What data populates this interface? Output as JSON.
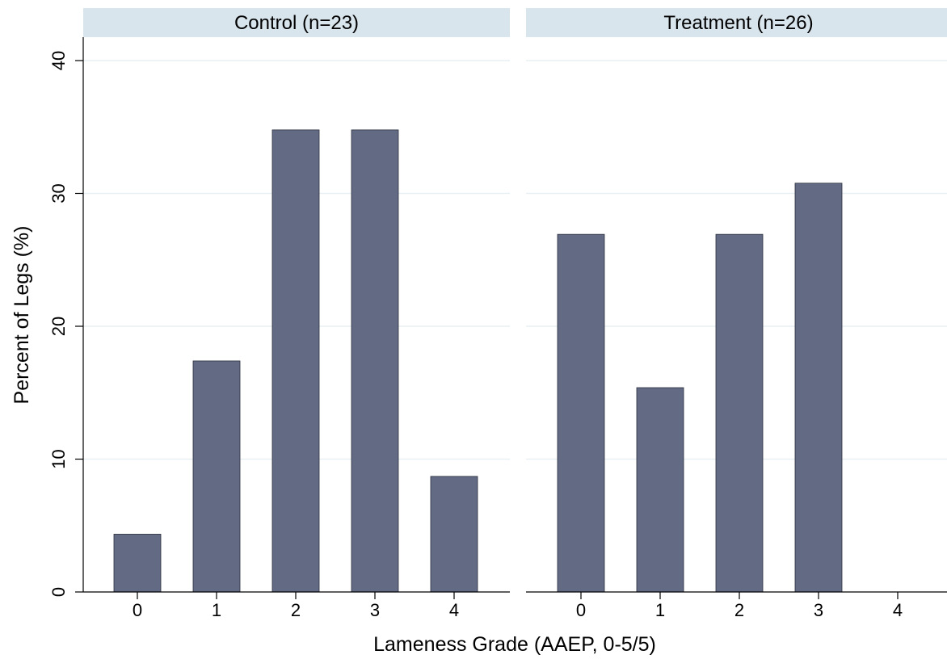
{
  "chart_data": {
    "type": "bar",
    "ylabel": "Percent of Legs (%)",
    "xlabel": "Lameness Grade (AAEP, 0-5/5)",
    "ylim": [
      0,
      40
    ],
    "yticks": [
      "0",
      "10",
      "20",
      "30",
      "40"
    ],
    "categories": [
      "0",
      "1",
      "2",
      "3",
      "4"
    ],
    "grid": true,
    "colors": {
      "bar": "#626a84",
      "bar_edge": "#2b2f3d",
      "header": "#d9e5ec",
      "grid": "#e8f0f3"
    },
    "panels": [
      {
        "title": "Control (n=23)",
        "values": [
          4.35,
          17.39,
          34.78,
          34.78,
          8.7
        ]
      },
      {
        "title": "Treatment (n=26)",
        "values": [
          26.92,
          15.38,
          26.92,
          30.77,
          0
        ]
      }
    ]
  }
}
